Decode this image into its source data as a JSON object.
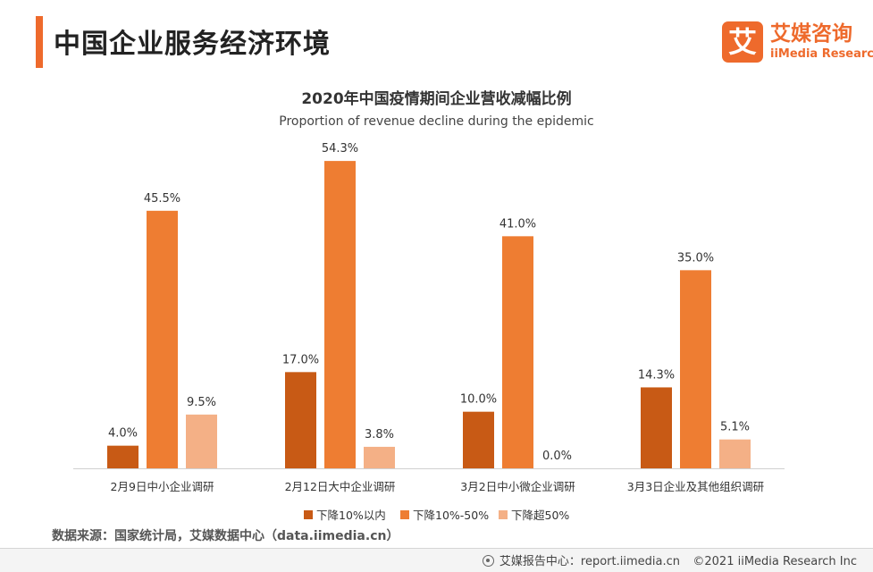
{
  "header": {
    "title": "中国企业服务经济环境",
    "logo_mark": "艾",
    "logo_cn": "艾媒咨询",
    "logo_en": "iiMedia Research"
  },
  "colors": {
    "accent": "#ee6a2c",
    "series": [
      "#c85a15",
      "#ee7d32",
      "#f4b086"
    ]
  },
  "chart_data": {
    "type": "bar",
    "title": "2020年中国疫情期间企业营收减幅比例",
    "subtitle": "Proportion of revenue decline during the epidemic",
    "categories": [
      "2月9日中小企业调研",
      "2月12日大中企业调研",
      "3月2日中小微企业调研",
      "3月3日企业及其他组织调研"
    ],
    "series": [
      {
        "name": "下降10%以内",
        "values": [
          4.0,
          17.0,
          10.0,
          14.3
        ]
      },
      {
        "name": "下降10%-50%",
        "values": [
          45.5,
          54.3,
          41.0,
          35.0
        ]
      },
      {
        "name": "下降超50%",
        "values": [
          9.5,
          3.8,
          0.0,
          5.1
        ]
      }
    ],
    "value_suffix": "%",
    "ylim": [
      0,
      60
    ],
    "grid": false,
    "legend_position": "bottom"
  },
  "source": "数据来源：国家统计局，艾媒数据中心（data.iimedia.cn）",
  "footer": {
    "report": "艾媒报告中心：report.iimedia.cn",
    "copyright": "©2021  iiMedia Research  Inc"
  }
}
